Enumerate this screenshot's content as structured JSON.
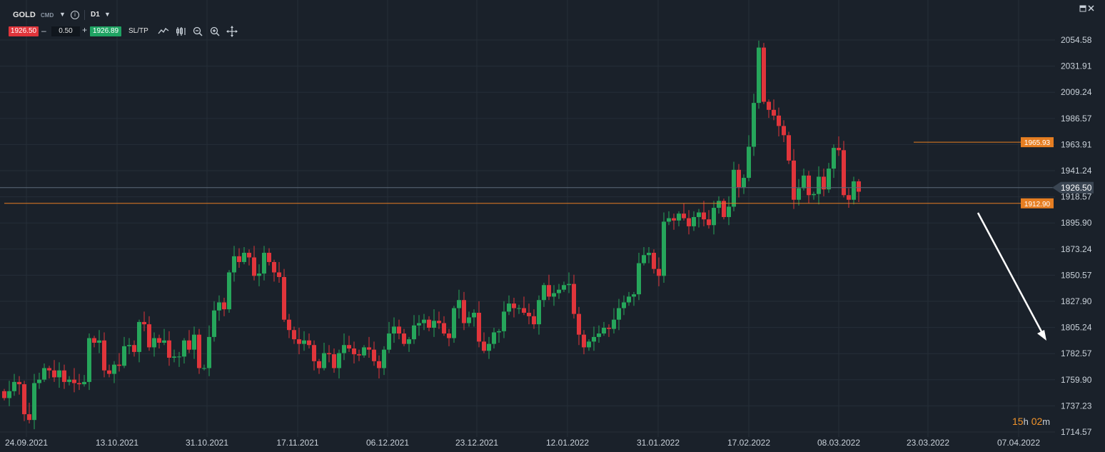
{
  "toolbar": {
    "symbol": "GOLD",
    "instrument_type": "CMD",
    "timeframe": "D1",
    "sell_price": "1926.50",
    "quantity": "0.50",
    "buy_price": "1926.89",
    "sltp_label": "SL/TP",
    "minus": "–",
    "plus": "+"
  },
  "timer": {
    "hours": "15",
    "h": "h",
    "minutes": "02",
    "m": "m"
  },
  "colors": {
    "up": "#26a65b",
    "down": "#e0353b",
    "background": "#1a212a",
    "grid": "#252e38",
    "level_line": "#e67e22",
    "current_line": "#5c6b7a",
    "arrow": "#ffffff"
  },
  "chart_data": {
    "type": "candlestick",
    "symbol": "GOLD",
    "timeframe": "D1",
    "y_ticks": [
      2054.58,
      2031.91,
      2009.24,
      1986.57,
      1963.91,
      1941.24,
      1918.57,
      1895.9,
      1873.24,
      1850.57,
      1827.9,
      1805.24,
      1782.57,
      1759.9,
      1737.23,
      1714.57
    ],
    "y_tick_labels": [
      "2054.58",
      "2031.91",
      "2009.24",
      "1986.57",
      "1963.91",
      "1941.24",
      "1918.57",
      "1895.90",
      "1873.24",
      "1850.57",
      "1827.90",
      "1805.24",
      "1782.57",
      "1759.90",
      "1737.23",
      "1714.57"
    ],
    "x_labels": [
      "24.09.2021",
      "13.10.2021",
      "31.10.2021",
      "17.11.2021",
      "06.12.2021",
      "23.12.2021",
      "12.01.2022",
      "31.01.2022",
      "17.02.2022",
      "08.03.2022",
      "23.03.2022",
      "07.04.2022"
    ],
    "current_price": 1926.5,
    "current_price_label": "1926.50",
    "levels": [
      {
        "value": 1965.93,
        "label": "1965.93",
        "start_index": 182
      },
      {
        "value": 1912.9,
        "label": "1912.90",
        "start_index": 0
      }
    ],
    "close_start": 1750.0,
    "closes": [
      1744,
      1750,
      1758,
      1756,
      1730,
      1725,
      1757,
      1760,
      1770,
      1768,
      1762,
      1768,
      1758,
      1760,
      1757,
      1756,
      1758,
      1796,
      1792,
      1794,
      1768,
      1765,
      1773,
      1772,
      1789,
      1790,
      1784,
      1810,
      1808,
      1788,
      1796,
      1792,
      1794,
      1779,
      1780,
      1780,
      1794,
      1786,
      1799,
      1770,
      1770,
      1797,
      1820,
      1827,
      1821,
      1853,
      1867,
      1862,
      1870,
      1866,
      1850,
      1852,
      1870,
      1862,
      1853,
      1849,
      1812,
      1803,
      1795,
      1791,
      1794,
      1790,
      1776,
      1770,
      1783,
      1782,
      1770,
      1783,
      1790,
      1787,
      1782,
      1781,
      1788,
      1786,
      1776,
      1770,
      1786,
      1800,
      1806,
      1800,
      1791,
      1795,
      1807,
      1809,
      1812,
      1805,
      1811,
      1809,
      1800,
      1796,
      1822,
      1829,
      1809,
      1814,
      1818,
      1793,
      1785,
      1791,
      1801,
      1802,
      1819,
      1826,
      1822,
      1822,
      1818,
      1815,
      1808,
      1829,
      1842,
      1832,
      1835,
      1838,
      1842,
      1843,
      1817,
      1799,
      1788,
      1793,
      1797,
      1800,
      1805,
      1804,
      1812,
      1822,
      1827,
      1832,
      1834,
      1861,
      1868,
      1870,
      1856,
      1850,
      1897,
      1900,
      1898,
      1904,
      1900,
      1893,
      1901,
      1905,
      1899,
      1894,
      1909,
      1915,
      1901,
      1910,
      1942,
      1927,
      1935,
      1962,
      2000,
      2048,
      2001,
      1994,
      1989,
      1980,
      1972,
      1950,
      1916,
      1926,
      1937,
      1920,
      1921,
      1936,
      1925,
      1943,
      1961,
      1959,
      1920,
      1916,
      1932,
      1923
    ]
  }
}
